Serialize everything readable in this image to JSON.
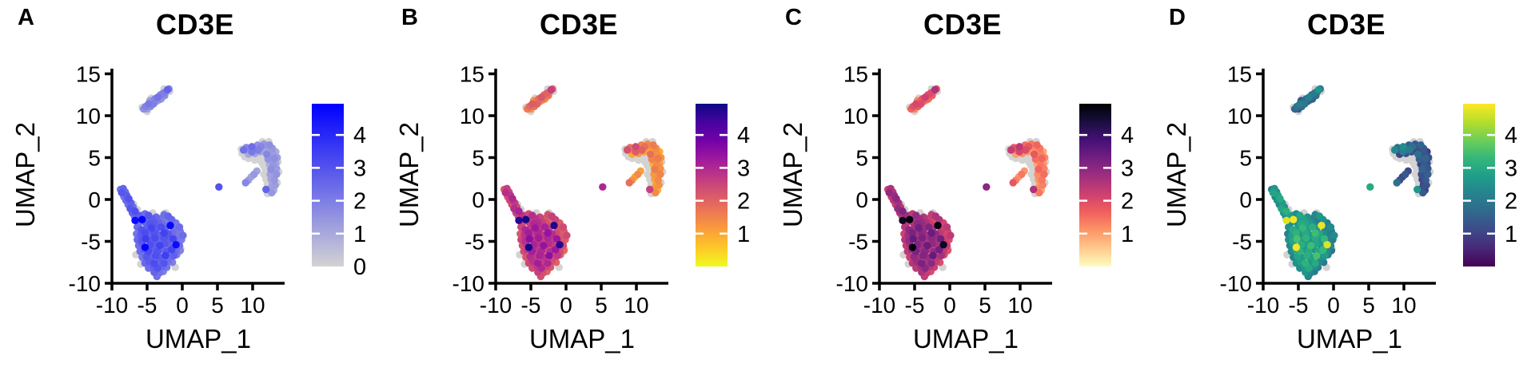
{
  "figure": {
    "panels": [
      {
        "label": "A",
        "title": "CD3E",
        "palette": "grey_blue",
        "colorbar_ticks": [
          4,
          3,
          2,
          1,
          0
        ]
      },
      {
        "label": "B",
        "title": "CD3E",
        "palette": "plasma_rev",
        "colorbar_ticks": [
          4,
          3,
          2,
          1
        ]
      },
      {
        "label": "C",
        "title": "CD3E",
        "palette": "magma_rev",
        "colorbar_ticks": [
          4,
          3,
          2,
          1
        ]
      },
      {
        "label": "D",
        "title": "CD3E",
        "palette": "viridis",
        "colorbar_ticks": [
          4,
          3,
          2,
          1
        ]
      }
    ],
    "palettes": {
      "grey_blue": [
        "#d3d3d3",
        "#0000ff"
      ],
      "plasma_rev": [
        "#f0f921",
        "#fdca26",
        "#fb9f3a",
        "#ed7953",
        "#d8576b",
        "#bd3786",
        "#9c179e",
        "#7201a8",
        "#46039f",
        "#0d0887"
      ],
      "magma_rev": [
        "#fcfdbf",
        "#feca8d",
        "#fd9567",
        "#f1605d",
        "#cd4071",
        "#9f2f7f",
        "#721f81",
        "#451077",
        "#180f3e",
        "#000004"
      ],
      "viridis": [
        "#440154",
        "#482878",
        "#3e4989",
        "#31688e",
        "#26828e",
        "#1f9e89",
        "#35b779",
        "#6ece58",
        "#b5de2b",
        "#fde725"
      ]
    },
    "na_color": "#d3d3d3",
    "axis_color": "#000000",
    "background": "#ffffff"
  },
  "chart_data": {
    "type": "scatter",
    "title": "CD3E",
    "xlabel": "UMAP_1",
    "ylabel": "UMAP_2",
    "x_ticks": [
      -10,
      -5,
      0,
      5,
      10
    ],
    "y_ticks": [
      -10,
      -5,
      0,
      5,
      10,
      15
    ],
    "xlim": [
      -12.5,
      14.8
    ],
    "ylim": [
      -11.2,
      15.8
    ],
    "color_scale": {
      "min": 0,
      "max": 4.95
    },
    "legend_position": "right",
    "grid": false,
    "points": [
      [
        -5.3,
        -1.7,
        2.4
      ],
      [
        -4.8,
        -1.9,
        2.9
      ],
      [
        -2.6,
        -1.8,
        2.3
      ],
      [
        -2.0,
        -2.0,
        2.6
      ],
      [
        -1.5,
        -2.4,
        2.5
      ],
      [
        -0.9,
        -2.8,
        2.1
      ],
      [
        -0.4,
        -3.3,
        2.4
      ],
      [
        -4.2,
        -1.6,
        0
      ],
      [
        -2.4,
        -1.6,
        0
      ],
      [
        -4.9,
        -2.2,
        2.4
      ],
      [
        -4.3,
        -2.3,
        2.8
      ],
      [
        -3.7,
        -2.1,
        2.5
      ],
      [
        -3.1,
        -2.3,
        2.2
      ],
      [
        -6.2,
        -2.9,
        2.3
      ],
      [
        -6.7,
        -2.5,
        4.7
      ],
      [
        -5.7,
        -2.4,
        4.9
      ],
      [
        -5.2,
        -2.8,
        2.6
      ],
      [
        -4.6,
        -2.9,
        3.0
      ],
      [
        -4.0,
        -2.8,
        2.9
      ],
      [
        -3.4,
        -2.7,
        2.6
      ],
      [
        -2.8,
        -2.9,
        2.3
      ],
      [
        -2.3,
        -2.6,
        2.0
      ],
      [
        -6.4,
        -3.3,
        2.5
      ],
      [
        -5.8,
        -3.6,
        3.0
      ],
      [
        -5.1,
        -3.5,
        2.7
      ],
      [
        -4.4,
        -3.4,
        3.3
      ],
      [
        -3.7,
        -3.5,
        2.8
      ],
      [
        -3.0,
        -3.3,
        3.1
      ],
      [
        -2.4,
        -3.5,
        2.6
      ],
      [
        -1.7,
        -3.1,
        4.8
      ],
      [
        -1.2,
        -3.6,
        2.2
      ],
      [
        -6.5,
        -4.1,
        2.2
      ],
      [
        -5.9,
        -4.2,
        2.8
      ],
      [
        -5.3,
        -4.0,
        3.2
      ],
      [
        -4.7,
        -4.1,
        2.6
      ],
      [
        -4.0,
        -4.0,
        3.0
      ],
      [
        -3.3,
        -4.2,
        2.7
      ],
      [
        -2.6,
        -4.0,
        3.4
      ],
      [
        -2.0,
        -4.1,
        2.9
      ],
      [
        -1.4,
        -4.0,
        2.4
      ],
      [
        -0.8,
        -4.2,
        2.1
      ],
      [
        -0.3,
        -3.8,
        2.1
      ],
      [
        0.1,
        -4.3,
        2.4
      ],
      [
        -6.4,
        -4.8,
        2.5
      ],
      [
        -5.8,
        -4.9,
        2.9
      ],
      [
        -5.2,
        -4.7,
        3.5
      ],
      [
        -4.5,
        -4.8,
        2.8
      ],
      [
        -3.9,
        -4.6,
        3.2
      ],
      [
        -3.2,
        -4.8,
        2.6
      ],
      [
        -2.6,
        -4.6,
        3.0
      ],
      [
        -1.9,
        -4.8,
        2.7
      ],
      [
        -1.3,
        -4.7,
        3.3
      ],
      [
        -0.6,
        -4.7,
        2.2
      ],
      [
        -0.1,
        -4.8,
        2.0
      ],
      [
        -6.2,
        -5.5,
        2.3
      ],
      [
        -5.7,
        -5.3,
        2.7
      ],
      [
        -5.3,
        -5.7,
        4.9
      ],
      [
        -4.6,
        -5.4,
        3.1
      ],
      [
        -3.9,
        -5.3,
        2.8
      ],
      [
        -3.2,
        -5.5,
        3.4
      ],
      [
        -2.5,
        -5.3,
        2.9
      ],
      [
        -1.8,
        -5.5,
        2.6
      ],
      [
        -0.9,
        -5.4,
        4.7
      ],
      [
        -0.4,
        -5.5,
        2.3
      ],
      [
        -6.0,
        -6.2,
        2.4
      ],
      [
        -5.4,
        -6.0,
        2.8
      ],
      [
        -4.8,
        -6.2,
        3.2
      ],
      [
        -4.1,
        -6.0,
        2.7
      ],
      [
        -3.5,
        -6.2,
        3.0
      ],
      [
        -2.8,
        -6.0,
        2.5
      ],
      [
        -2.2,
        -6.2,
        2.9
      ],
      [
        -1.5,
        -6.0,
        3.3
      ],
      [
        -0.9,
        -6.2,
        2.4
      ],
      [
        -0.3,
        -6.1,
        1.9
      ],
      [
        -5.7,
        -6.9,
        2.2
      ],
      [
        -5.1,
        -6.8,
        2.9
      ],
      [
        -4.4,
        -6.9,
        2.6
      ],
      [
        -3.8,
        -6.7,
        3.1
      ],
      [
        -3.1,
        -6.9,
        2.8
      ],
      [
        -2.4,
        -6.7,
        3.5
      ],
      [
        -1.8,
        -6.9,
        2.4
      ],
      [
        -1.2,
        -6.7,
        2.7
      ],
      [
        -0.8,
        -6.6,
        2.0
      ],
      [
        -5.3,
        -7.6,
        2.5
      ],
      [
        -4.7,
        -7.4,
        2.8
      ],
      [
        -4.0,
        -7.6,
        3.2
      ],
      [
        -3.3,
        -7.4,
        2.6
      ],
      [
        -2.6,
        -7.6,
        3.0
      ],
      [
        -2.0,
        -7.4,
        2.3
      ],
      [
        -1.4,
        -7.5,
        2.0
      ],
      [
        -4.8,
        -8.2,
        2.4
      ],
      [
        -4.1,
        -8.0,
        2.7
      ],
      [
        -3.5,
        -8.2,
        3.0
      ],
      [
        -2.8,
        -8.0,
        2.5
      ],
      [
        -2.2,
        -8.1,
        2.2
      ],
      [
        -4.0,
        -8.7,
        2.6
      ],
      [
        -3.3,
        -8.8,
        2.3
      ],
      [
        -2.7,
        -8.6,
        2.0
      ],
      [
        -3.6,
        -9.2,
        2.3
      ],
      [
        -6.6,
        -6.6,
        0
      ],
      [
        -1.0,
        -8.1,
        0
      ],
      [
        -0.2,
        -5.9,
        0
      ],
      [
        -5.9,
        -7.7,
        0
      ],
      [
        -8.8,
        1.2,
        2.2
      ],
      [
        -8.4,
        1.3,
        2.6
      ],
      [
        -8.6,
        0.8,
        2.9
      ],
      [
        -8.1,
        0.9,
        2.4
      ],
      [
        -8.3,
        0.3,
        2.2
      ],
      [
        -7.9,
        0.5,
        2.8
      ],
      [
        -8.0,
        -0.1,
        2.5
      ],
      [
        -7.6,
        0.1,
        3.0
      ],
      [
        -7.7,
        -0.6,
        2.3
      ],
      [
        -7.3,
        -0.4,
        2.7
      ],
      [
        -7.4,
        -1.1,
        2.9
      ],
      [
        -7.0,
        -0.9,
        2.4
      ],
      [
        -7.1,
        -1.6,
        2.6
      ],
      [
        -6.7,
        -1.4,
        3.1
      ],
      [
        -6.8,
        -2.0,
        2.3
      ],
      [
        -6.3,
        -1.9,
        2.8
      ],
      [
        -6.0,
        -2.4,
        2.6
      ],
      [
        -5.8,
        -1.9,
        2.2
      ],
      [
        -6.9,
        -0.6,
        0
      ],
      [
        -6.4,
        -1.2,
        0
      ],
      [
        -5.5,
        10.8,
        1.6
      ],
      [
        -5.2,
        11.1,
        1.9
      ],
      [
        -5.0,
        10.8,
        1.3
      ],
      [
        -4.8,
        11.4,
        2.1
      ],
      [
        -4.5,
        11.1,
        1.7
      ],
      [
        -4.3,
        11.7,
        1.5
      ],
      [
        -4.1,
        11.4,
        2.0
      ],
      [
        -3.9,
        12.0,
        1.8
      ],
      [
        -3.7,
        11.7,
        1.4
      ],
      [
        -3.5,
        12.2,
        2.2
      ],
      [
        -3.3,
        11.9,
        1.6
      ],
      [
        -3.1,
        12.5,
        1.9
      ],
      [
        -2.9,
        12.2,
        1.5
      ],
      [
        -2.7,
        12.7,
        2.0
      ],
      [
        -2.5,
        12.4,
        1.7
      ],
      [
        -2.3,
        12.9,
        1.4
      ],
      [
        -2.1,
        13.1,
        2.6
      ],
      [
        -4.6,
        11.8,
        1.2
      ],
      [
        -3.0,
        12.0,
        1.1
      ],
      [
        -1.9,
        13.2,
        1.8
      ],
      [
        -5.7,
        11.0,
        0
      ],
      [
        -5.0,
        10.5,
        0
      ],
      [
        -1.8,
        12.9,
        0
      ],
      [
        -2.6,
        13.2,
        0
      ],
      [
        -4.4,
        12.1,
        0
      ],
      [
        8.7,
        5.9,
        2.3
      ],
      [
        9.1,
        6.2,
        1.8
      ],
      [
        9.5,
        5.9,
        1.4
      ],
      [
        9.4,
        5.4,
        1.0
      ],
      [
        9.9,
        5.7,
        2.1
      ],
      [
        9.9,
        6.3,
        2.4
      ],
      [
        10.4,
        6.1,
        1.6
      ],
      [
        10.3,
        5.5,
        1.2
      ],
      [
        10.8,
        5.9,
        2.0
      ],
      [
        10.7,
        6.5,
        1.5
      ],
      [
        11.2,
        6.3,
        1.8
      ],
      [
        11.1,
        5.7,
        1.1
      ],
      [
        11.6,
        6.6,
        1.4
      ],
      [
        12.0,
        6.3,
        1.2
      ],
      [
        11.7,
        5.9,
        0.9
      ],
      [
        12.4,
        6.5,
        1.6
      ],
      [
        12.3,
        5.9,
        1.1
      ],
      [
        12.8,
        6.1,
        1.4
      ],
      [
        12.0,
        5.4,
        1.8
      ],
      [
        12.5,
        5.3,
        1.0
      ],
      [
        12.9,
        5.5,
        1.3
      ],
      [
        13.3,
        5.7,
        0.9
      ],
      [
        12.2,
        4.8,
        1.5
      ],
      [
        12.7,
        4.7,
        1.1
      ],
      [
        13.1,
        4.9,
        1.6
      ],
      [
        13.5,
        5.0,
        1.2
      ],
      [
        12.4,
        4.2,
        0.9
      ],
      [
        12.9,
        4.1,
        1.4
      ],
      [
        13.3,
        4.3,
        1.1
      ],
      [
        12.6,
        3.6,
        1.6
      ],
      [
        13.0,
        3.5,
        1.0
      ],
      [
        13.4,
        3.7,
        1.3
      ],
      [
        12.5,
        3.0,
        1.2
      ],
      [
        12.9,
        2.9,
        0.9
      ],
      [
        13.4,
        3.0,
        1.5
      ],
      [
        12.6,
        2.4,
        1.1
      ],
      [
        13.1,
        2.3,
        1.4
      ],
      [
        12.8,
        1.8,
        1.0
      ],
      [
        13.2,
        1.7,
        1.3
      ],
      [
        12.5,
        1.3,
        1.2
      ],
      [
        13.0,
        1.1,
        0.9
      ],
      [
        12.7,
        0.8,
        1.4
      ],
      [
        11.9,
        1.2,
        2.6
      ],
      [
        10.6,
        3.4,
        1.1
      ],
      [
        10.2,
        3.0,
        1.4
      ],
      [
        9.8,
        2.7,
        1.0
      ],
      [
        9.4,
        2.3,
        1.3
      ],
      [
        9.0,
        2.0,
        1.8
      ],
      [
        8.5,
        5.5,
        0
      ],
      [
        8.9,
        5.1,
        0
      ],
      [
        9.4,
        4.9,
        0
      ],
      [
        9.9,
        5.1,
        0
      ],
      [
        10.3,
        4.7,
        0
      ],
      [
        10.8,
        4.9,
        0
      ],
      [
        11.2,
        4.5,
        0
      ],
      [
        11.6,
        4.8,
        0
      ],
      [
        11.5,
        4.1,
        0
      ],
      [
        11.8,
        3.6,
        0
      ],
      [
        11.6,
        3.0,
        0
      ],
      [
        11.9,
        2.4,
        0
      ],
      [
        12.1,
        1.8,
        0
      ],
      [
        12.1,
        0.7,
        0
      ],
      [
        13.6,
        4.5,
        0
      ],
      [
        13.7,
        3.3,
        0
      ],
      [
        13.5,
        2.0,
        0
      ],
      [
        12.3,
        6.9,
        0
      ],
      [
        11.4,
        6.9,
        0
      ],
      [
        8.4,
        6.0,
        0
      ],
      [
        10.9,
        5.3,
        0
      ],
      [
        12.0,
        4.5,
        0
      ],
      [
        5.2,
        1.5,
        3.0
      ]
    ]
  }
}
